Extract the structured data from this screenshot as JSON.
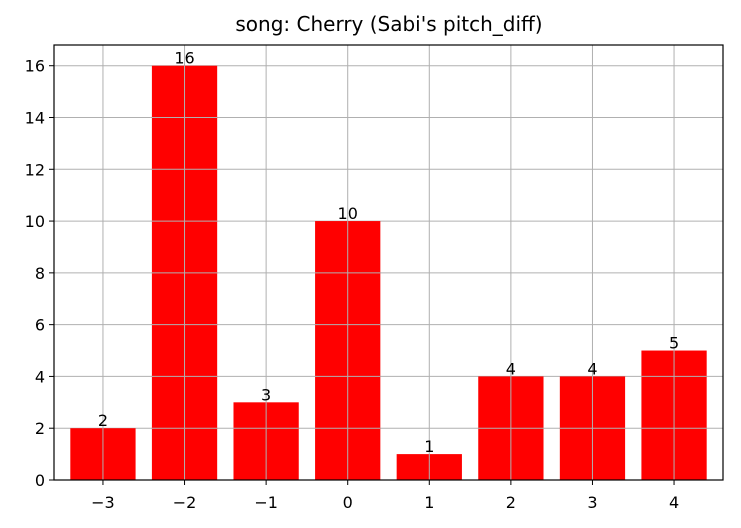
{
  "chart_data": {
    "type": "bar",
    "title": "song: Cherry (Sabi's pitch_diff)",
    "xlabel": "",
    "ylabel": "",
    "categories": [
      "−3",
      "−2",
      "−1",
      "0",
      "1",
      "2",
      "3",
      "4"
    ],
    "values": [
      2,
      16,
      3,
      10,
      1,
      4,
      4,
      5
    ],
    "data_labels": [
      "2",
      "16",
      "3",
      "10",
      "1",
      "4",
      "4",
      "5"
    ],
    "y_ticks": [
      "0",
      "2",
      "4",
      "6",
      "8",
      "10",
      "12",
      "14",
      "16"
    ],
    "ylim": [
      0,
      16.8
    ],
    "grid": true,
    "bar_color": "#ff0000",
    "grid_color": "#b0b0b0"
  }
}
